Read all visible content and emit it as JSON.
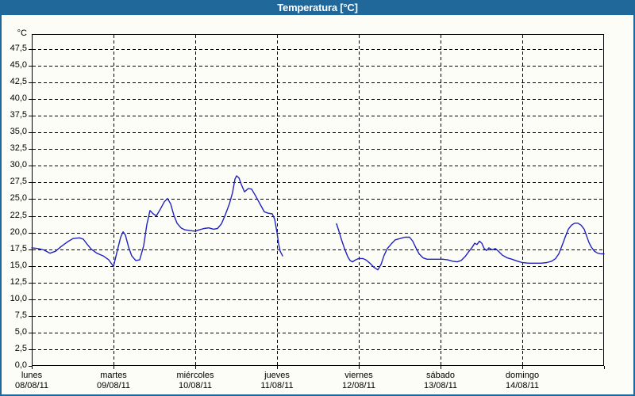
{
  "window": {
    "title": "Temperatura [°C]"
  },
  "colors": {
    "titlebar": "#1F6899",
    "frame": "#1F6899",
    "background": "#FDFDF7",
    "grid": "#000000",
    "line": "#2121C0",
    "text": "#000000"
  },
  "chart_data": {
    "type": "line",
    "title": "Temperatura [°C]",
    "grid": "dashed",
    "legend": "none",
    "y_axis": {
      "unit_label": "°C",
      "min": 0,
      "max": 47.5,
      "tick_step": 2.5,
      "tick_labels": [
        "0,0",
        "2,5",
        "5,0",
        "7,5",
        "10,0",
        "12,5",
        "15,0",
        "17,5",
        "20,0",
        "22,5",
        "25,0",
        "27,5",
        "30,0",
        "32,5",
        "35,0",
        "37,5",
        "40,0",
        "42,5",
        "45,0",
        "47,5"
      ]
    },
    "x_axis": {
      "range_days": 7,
      "days": [
        {
          "name": "lunes",
          "date": "08/08/11"
        },
        {
          "name": "martes",
          "date": "09/08/11"
        },
        {
          "name": "miércoles",
          "date": "10/08/11"
        },
        {
          "name": "jueves",
          "date": "11/08/11"
        },
        {
          "name": "viernes",
          "date": "12/08/11"
        },
        {
          "name": "sábado",
          "date": "13/08/11"
        },
        {
          "name": "domingo",
          "date": "14/08/11"
        }
      ]
    },
    "series": [
      {
        "name": "Temperatura",
        "color": "#2121C0",
        "note": "x = days since lunes 08/08/11 00:00, y = °C; gap in data during jueves",
        "segments": [
          [
            [
              0.0,
              17.7
            ],
            [
              0.078,
              17.6
            ],
            [
              0.146,
              17.4
            ],
            [
              0.223,
              16.9
            ],
            [
              0.291,
              17.2
            ],
            [
              0.359,
              17.9
            ],
            [
              0.437,
              18.6
            ],
            [
              0.505,
              19.1
            ],
            [
              0.583,
              19.2
            ],
            [
              0.631,
              19.0
            ],
            [
              0.68,
              18.2
            ],
            [
              0.728,
              17.5
            ],
            [
              0.796,
              16.9
            ],
            [
              0.874,
              16.5
            ],
            [
              0.942,
              15.9
            ],
            [
              1.0,
              14.9
            ],
            [
              1.039,
              16.9
            ],
            [
              1.087,
              19.3
            ],
            [
              1.117,
              20.1
            ],
            [
              1.146,
              19.6
            ],
            [
              1.184,
              17.8
            ],
            [
              1.223,
              16.5
            ],
            [
              1.272,
              15.8
            ],
            [
              1.32,
              15.9
            ],
            [
              1.369,
              18.0
            ],
            [
              1.408,
              21.2
            ],
            [
              1.447,
              23.3
            ],
            [
              1.485,
              22.8
            ],
            [
              1.524,
              22.5
            ],
            [
              1.573,
              23.5
            ],
            [
              1.621,
              24.6
            ],
            [
              1.66,
              25.1
            ],
            [
              1.699,
              24.3
            ],
            [
              1.738,
              22.6
            ],
            [
              1.777,
              21.4
            ],
            [
              1.825,
              20.7
            ],
            [
              1.874,
              20.4
            ],
            [
              1.932,
              20.3
            ],
            [
              2.0,
              20.2
            ],
            [
              2.049,
              20.4
            ],
            [
              2.107,
              20.6
            ],
            [
              2.165,
              20.7
            ],
            [
              2.223,
              20.5
            ],
            [
              2.272,
              20.6
            ],
            [
              2.32,
              21.3
            ],
            [
              2.369,
              22.7
            ],
            [
              2.417,
              24.3
            ],
            [
              2.456,
              26.0
            ],
            [
              2.485,
              28.0
            ],
            [
              2.505,
              28.5
            ],
            [
              2.534,
              28.2
            ],
            [
              2.563,
              27.2
            ],
            [
              2.602,
              26.1
            ],
            [
              2.65,
              26.6
            ],
            [
              2.689,
              26.5
            ],
            [
              2.738,
              25.5
            ],
            [
              2.786,
              24.4
            ],
            [
              2.845,
              23.1
            ],
            [
              2.893,
              22.9
            ],
            [
              2.942,
              22.8
            ],
            [
              2.971,
              22.0
            ],
            [
              3.0,
              20.0
            ],
            [
              3.019,
              18.3
            ],
            [
              3.039,
              17.2
            ],
            [
              3.068,
              16.5
            ]
          ],
          [
            [
              3.728,
              21.3
            ],
            [
              3.757,
              20.2
            ],
            [
              3.786,
              19.0
            ],
            [
              3.825,
              17.6
            ],
            [
              3.864,
              16.4
            ],
            [
              3.893,
              15.8
            ],
            [
              3.922,
              15.6
            ],
            [
              3.961,
              15.9
            ],
            [
              4.0,
              16.1
            ],
            [
              4.049,
              16.1
            ],
            [
              4.087,
              15.9
            ],
            [
              4.136,
              15.4
            ],
            [
              4.184,
              14.8
            ],
            [
              4.233,
              14.4
            ],
            [
              4.272,
              15.2
            ],
            [
              4.311,
              16.6
            ],
            [
              4.35,
              17.6
            ],
            [
              4.398,
              18.3
            ],
            [
              4.447,
              18.9
            ],
            [
              4.505,
              19.1
            ],
            [
              4.563,
              19.3
            ],
            [
              4.621,
              19.3
            ],
            [
              4.66,
              18.7
            ],
            [
              4.699,
              17.7
            ],
            [
              4.738,
              16.8
            ],
            [
              4.786,
              16.2
            ],
            [
              4.835,
              16.0
            ],
            [
              4.903,
              16.0
            ],
            [
              4.971,
              16.0
            ],
            [
              5.029,
              16.0
            ],
            [
              5.087,
              15.9
            ],
            [
              5.146,
              15.7
            ],
            [
              5.204,
              15.6
            ],
            [
              5.252,
              15.8
            ],
            [
              5.301,
              16.4
            ],
            [
              5.35,
              17.2
            ],
            [
              5.388,
              17.8
            ],
            [
              5.417,
              18.4
            ],
            [
              5.447,
              18.2
            ],
            [
              5.476,
              18.7
            ],
            [
              5.505,
              18.4
            ],
            [
              5.534,
              17.6
            ],
            [
              5.563,
              17.3
            ],
            [
              5.592,
              17.7
            ],
            [
              5.631,
              17.4
            ],
            [
              5.67,
              17.6
            ],
            [
              5.709,
              17.2
            ],
            [
              5.757,
              16.6
            ],
            [
              5.816,
              16.2
            ],
            [
              5.874,
              16.0
            ],
            [
              5.942,
              15.7
            ],
            [
              6.0,
              15.5
            ],
            [
              6.078,
              15.4
            ],
            [
              6.155,
              15.4
            ],
            [
              6.233,
              15.4
            ],
            [
              6.301,
              15.5
            ],
            [
              6.359,
              15.7
            ],
            [
              6.408,
              16.1
            ],
            [
              6.447,
              16.8
            ],
            [
              6.485,
              18.0
            ],
            [
              6.524,
              19.3
            ],
            [
              6.563,
              20.5
            ],
            [
              6.602,
              21.1
            ],
            [
              6.641,
              21.4
            ],
            [
              6.68,
              21.4
            ],
            [
              6.719,
              21.1
            ],
            [
              6.757,
              20.5
            ],
            [
              6.786,
              19.5
            ],
            [
              6.816,
              18.5
            ],
            [
              6.845,
              17.8
            ],
            [
              6.883,
              17.2
            ],
            [
              6.922,
              16.9
            ],
            [
              6.961,
              16.8
            ],
            [
              7.0,
              16.8
            ]
          ]
        ]
      }
    ]
  }
}
